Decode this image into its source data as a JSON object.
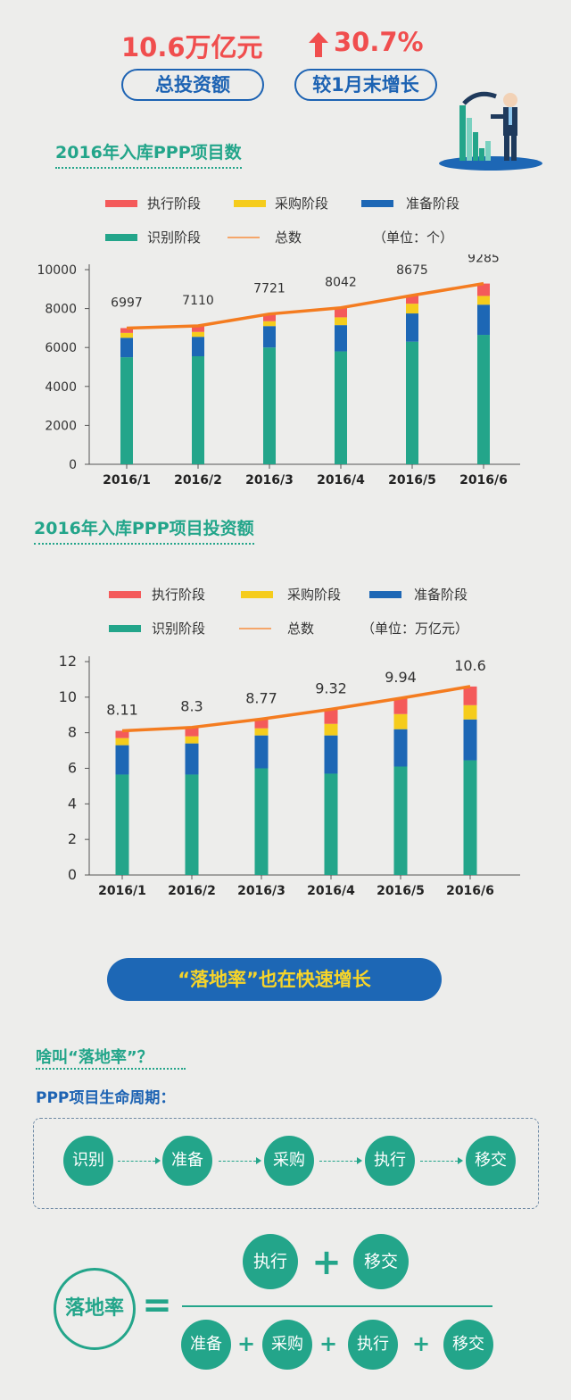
{
  "header": {
    "total_value": "10.6万亿元",
    "total_label": "总投资额",
    "growth_value": "30.7%",
    "growth_label": "较1月末增长"
  },
  "legend_labels": {
    "exec": "执行阶段",
    "purchase": "采购阶段",
    "prep": "准备阶段",
    "identify": "识别阶段",
    "total": "总数"
  },
  "colors": {
    "exec": "#f45a5a",
    "purchase": "#f5cc1c",
    "prep": "#1d67b5",
    "identify": "#23a58a",
    "total": "#f47c20"
  },
  "chart_data": [
    {
      "type": "bar",
      "title": "2016年入库PPP项目数",
      "unit_label": "（单位：个）",
      "categories": [
        "2016/1",
        "2016/2",
        "2016/3",
        "2016/4",
        "2016/5",
        "2016/6"
      ],
      "ylim": [
        0,
        10000
      ],
      "yticks": [
        "0",
        "2000",
        "4000",
        "6000",
        "8000",
        "10000"
      ],
      "total_labels": [
        "6997",
        "7110",
        "7721",
        "8042",
        "8675",
        "9285"
      ],
      "totals": [
        6997,
        7110,
        7721,
        8042,
        8675,
        9285
      ],
      "series": [
        {
          "name": "识别阶段",
          "values": [
            5500,
            5550,
            6000,
            5800,
            6300,
            6650
          ]
        },
        {
          "name": "准备阶段",
          "values": [
            1000,
            1000,
            1100,
            1350,
            1450,
            1550
          ]
        },
        {
          "name": "采购阶段",
          "values": [
            250,
            250,
            250,
            400,
            500,
            450
          ]
        },
        {
          "name": "执行阶段",
          "values": [
            247,
            310,
            371,
            492,
            425,
            635
          ]
        }
      ]
    },
    {
      "type": "bar",
      "title": "2016年入库PPP项目投资额",
      "unit_label": "（单位：万亿元）",
      "categories": [
        "2016/1",
        "2016/2",
        "2016/3",
        "2016/4",
        "2016/5",
        "2016/6"
      ],
      "ylim": [
        0,
        12
      ],
      "yticks": [
        "0",
        "2",
        "4",
        "6",
        "8",
        "10",
        "12"
      ],
      "total_labels": [
        "8.11",
        "8.3",
        "8.77",
        "9.32",
        "9.94",
        "10.6"
      ],
      "totals": [
        8.11,
        8.3,
        8.77,
        9.32,
        9.94,
        10.6
      ],
      "series": [
        {
          "name": "识别阶段",
          "values": [
            5.65,
            5.65,
            6.0,
            5.7,
            6.1,
            6.45
          ]
        },
        {
          "name": "准备阶段",
          "values": [
            1.65,
            1.75,
            1.85,
            2.15,
            2.1,
            2.3
          ]
        },
        {
          "name": "采购阶段",
          "values": [
            0.4,
            0.4,
            0.4,
            0.65,
            0.85,
            0.8
          ]
        },
        {
          "name": "执行阶段",
          "values": [
            0.41,
            0.5,
            0.52,
            0.82,
            0.89,
            1.05
          ]
        }
      ]
    }
  ],
  "banner": {
    "text": "“落地率”也在快速增长"
  },
  "question": {
    "text": "啥叫“落地率”？"
  },
  "lifecycle": {
    "title": "PPP项目生命周期：",
    "steps": [
      "识别",
      "准备",
      "采购",
      "执行",
      "移交"
    ]
  },
  "formula": {
    "label": "落地率",
    "equals": "=",
    "plus": "+",
    "numerator": [
      "执行",
      "移交"
    ],
    "denominator": [
      "准备",
      "采购",
      "执行",
      "移交"
    ]
  }
}
